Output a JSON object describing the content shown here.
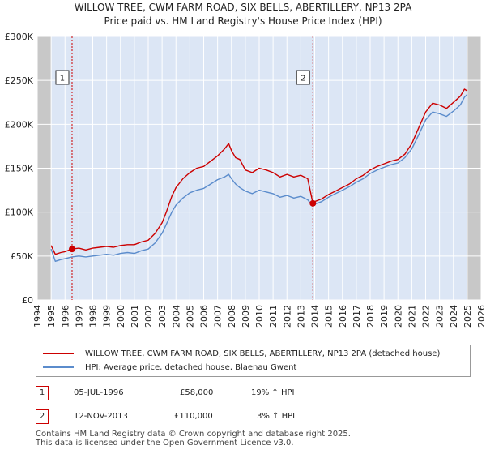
{
  "chart_data": {
    "type": "line",
    "title": "WILLOW TREE, CWM FARM ROAD, SIX BELLS, ABERTILLERY, NP13 2PA",
    "subtitle": "Price paid vs. HM Land Registry's House Price Index (HPI)",
    "xlabel": "",
    "ylabel": "",
    "xlim": [
      1994,
      2026
    ],
    "ylim": [
      0,
      300000
    ],
    "x_ticks": [
      "1994",
      "1995",
      "1996",
      "1997",
      "1998",
      "1999",
      "2000",
      "2001",
      "2002",
      "2003",
      "2004",
      "2005",
      "2006",
      "2007",
      "2008",
      "2009",
      "2010",
      "2011",
      "2012",
      "2013",
      "2014",
      "2015",
      "2016",
      "2017",
      "2018",
      "2019",
      "2020",
      "2021",
      "2022",
      "2023",
      "2024",
      "2025",
      "2026"
    ],
    "y_ticks": [
      {
        "value": 0,
        "label": "£0"
      },
      {
        "value": 50000,
        "label": "£50K"
      },
      {
        "value": 100000,
        "label": "£100K"
      },
      {
        "value": 150000,
        "label": "£150K"
      },
      {
        "value": 200000,
        "label": "£200K"
      },
      {
        "value": 250000,
        "label": "£250K"
      },
      {
        "value": 300000,
        "label": "£300K"
      }
    ],
    "shaded_ranges": [
      [
        1994,
        1995
      ],
      [
        2025,
        2026
      ]
    ],
    "series": [
      {
        "name": "WILLOW TREE, CWM FARM ROAD, SIX BELLS, ABERTILLERY, NP13 2PA (detached house)",
        "color": "#cc0000",
        "points": [
          [
            1995.0,
            62000
          ],
          [
            1995.3,
            52000
          ],
          [
            1995.7,
            54000
          ],
          [
            1996.0,
            55000
          ],
          [
            1996.5,
            58000
          ],
          [
            1997.0,
            59000
          ],
          [
            1997.5,
            57000
          ],
          [
            1998.0,
            59000
          ],
          [
            1998.5,
            60000
          ],
          [
            1999.0,
            61000
          ],
          [
            1999.5,
            60000
          ],
          [
            2000.0,
            62000
          ],
          [
            2000.5,
            63000
          ],
          [
            2001.0,
            63000
          ],
          [
            2001.5,
            66000
          ],
          [
            2002.0,
            68000
          ],
          [
            2002.5,
            76000
          ],
          [
            2003.0,
            88000
          ],
          [
            2003.3,
            100000
          ],
          [
            2003.7,
            118000
          ],
          [
            2004.0,
            128000
          ],
          [
            2004.5,
            138000
          ],
          [
            2005.0,
            145000
          ],
          [
            2005.5,
            150000
          ],
          [
            2006.0,
            152000
          ],
          [
            2006.5,
            158000
          ],
          [
            2007.0,
            164000
          ],
          [
            2007.5,
            172000
          ],
          [
            2007.8,
            178000
          ],
          [
            2008.0,
            170000
          ],
          [
            2008.3,
            162000
          ],
          [
            2008.6,
            160000
          ],
          [
            2009.0,
            148000
          ],
          [
            2009.5,
            145000
          ],
          [
            2010.0,
            150000
          ],
          [
            2010.5,
            148000
          ],
          [
            2011.0,
            145000
          ],
          [
            2011.5,
            140000
          ],
          [
            2012.0,
            143000
          ],
          [
            2012.5,
            140000
          ],
          [
            2013.0,
            142000
          ],
          [
            2013.5,
            138000
          ],
          [
            2013.87,
            110000
          ],
          [
            2014.0,
            112000
          ],
          [
            2014.5,
            115000
          ],
          [
            2015.0,
            120000
          ],
          [
            2015.5,
            124000
          ],
          [
            2016.0,
            128000
          ],
          [
            2016.5,
            132000
          ],
          [
            2017.0,
            138000
          ],
          [
            2017.5,
            142000
          ],
          [
            2018.0,
            148000
          ],
          [
            2018.5,
            152000
          ],
          [
            2019.0,
            155000
          ],
          [
            2019.5,
            158000
          ],
          [
            2020.0,
            160000
          ],
          [
            2020.5,
            166000
          ],
          [
            2021.0,
            178000
          ],
          [
            2021.5,
            196000
          ],
          [
            2022.0,
            214000
          ],
          [
            2022.5,
            224000
          ],
          [
            2023.0,
            222000
          ],
          [
            2023.5,
            218000
          ],
          [
            2024.0,
            225000
          ],
          [
            2024.5,
            232000
          ],
          [
            2024.8,
            240000
          ],
          [
            2025.0,
            238000
          ]
        ]
      },
      {
        "name": "HPI: Average price, detached house, Blaenau Gwent",
        "color": "#5b8ccc",
        "points": [
          [
            1995.0,
            58000
          ],
          [
            1995.3,
            44000
          ],
          [
            1995.7,
            46000
          ],
          [
            1996.0,
            47000
          ],
          [
            1996.5,
            49000
          ],
          [
            1997.0,
            50000
          ],
          [
            1997.5,
            49000
          ],
          [
            1998.0,
            50000
          ],
          [
            1998.5,
            51000
          ],
          [
            1999.0,
            52000
          ],
          [
            1999.5,
            51000
          ],
          [
            2000.0,
            53000
          ],
          [
            2000.5,
            54000
          ],
          [
            2001.0,
            53000
          ],
          [
            2001.5,
            56000
          ],
          [
            2002.0,
            58000
          ],
          [
            2002.5,
            65000
          ],
          [
            2003.0,
            76000
          ],
          [
            2003.3,
            86000
          ],
          [
            2003.7,
            100000
          ],
          [
            2004.0,
            108000
          ],
          [
            2004.5,
            116000
          ],
          [
            2005.0,
            122000
          ],
          [
            2005.5,
            125000
          ],
          [
            2006.0,
            127000
          ],
          [
            2006.5,
            132000
          ],
          [
            2007.0,
            137000
          ],
          [
            2007.5,
            140000
          ],
          [
            2007.8,
            143000
          ],
          [
            2008.0,
            138000
          ],
          [
            2008.3,
            132000
          ],
          [
            2008.6,
            128000
          ],
          [
            2009.0,
            124000
          ],
          [
            2009.5,
            121000
          ],
          [
            2010.0,
            125000
          ],
          [
            2010.5,
            123000
          ],
          [
            2011.0,
            121000
          ],
          [
            2011.5,
            117000
          ],
          [
            2012.0,
            119000
          ],
          [
            2012.5,
            116000
          ],
          [
            2013.0,
            118000
          ],
          [
            2013.5,
            114000
          ],
          [
            2013.87,
            107000
          ],
          [
            2014.0,
            109000
          ],
          [
            2014.5,
            112000
          ],
          [
            2015.0,
            117000
          ],
          [
            2015.5,
            121000
          ],
          [
            2016.0,
            125000
          ],
          [
            2016.5,
            129000
          ],
          [
            2017.0,
            134000
          ],
          [
            2017.5,
            138000
          ],
          [
            2018.0,
            144000
          ],
          [
            2018.5,
            148000
          ],
          [
            2019.0,
            151000
          ],
          [
            2019.5,
            154000
          ],
          [
            2020.0,
            156000
          ],
          [
            2020.5,
            162000
          ],
          [
            2021.0,
            172000
          ],
          [
            2021.5,
            188000
          ],
          [
            2022.0,
            205000
          ],
          [
            2022.5,
            214000
          ],
          [
            2023.0,
            212000
          ],
          [
            2023.5,
            209000
          ],
          [
            2024.0,
            215000
          ],
          [
            2024.5,
            222000
          ],
          [
            2024.8,
            231000
          ],
          [
            2025.0,
            234000
          ]
        ]
      }
    ],
    "markers": [
      {
        "id": "1",
        "x": 1996.51,
        "value": 58000
      },
      {
        "id": "2",
        "x": 2013.87,
        "value": 110000
      }
    ]
  },
  "legend": {
    "property_label": "WILLOW TREE, CWM FARM ROAD, SIX BELLS, ABERTILLERY, NP13 2PA (detached house)",
    "hpi_label": "HPI: Average price, detached house, Blaenau Gwent",
    "property_color": "#cc0000",
    "hpi_color": "#5b8ccc"
  },
  "transactions": [
    {
      "id": "1",
      "date": "05-JUL-1996",
      "price": "£58,000",
      "hpi": "19% ↑ HPI"
    },
    {
      "id": "2",
      "date": "12-NOV-2013",
      "price": "£110,000",
      "hpi": "3% ↑ HPI"
    }
  ],
  "footer": {
    "line1": "Contains HM Land Registry data © Crown copyright and database right 2025.",
    "line2": "This data is licensed under the Open Government Licence v3.0."
  },
  "colors": {
    "plot_bg": "#dce6f5",
    "shade": "#c8c8c8",
    "grid": "#ffffff",
    "marker_line": "#cc0000"
  }
}
